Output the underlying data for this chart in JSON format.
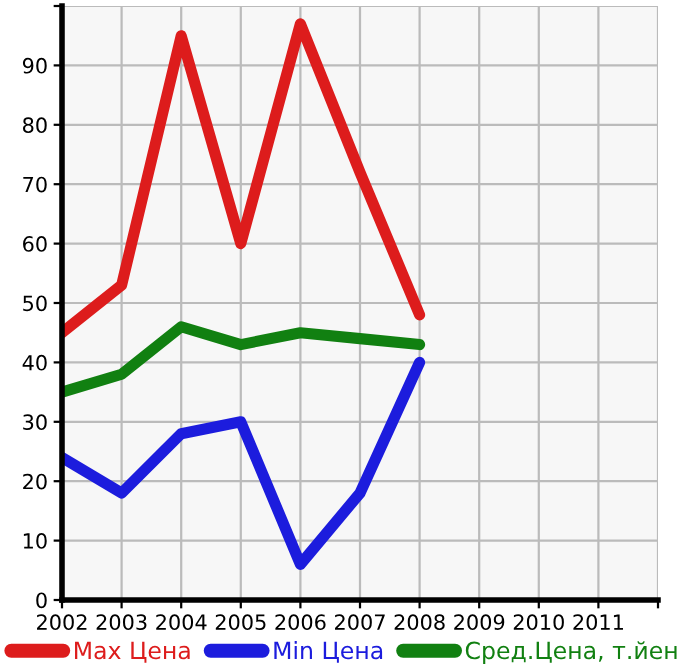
{
  "chart_data": {
    "type": "line",
    "x": [
      2002,
      2003,
      2004,
      2005,
      2006,
      2007,
      2008
    ],
    "series": [
      {
        "name": "Max Цена",
        "color": "#dd1c1c",
        "values": [
          45,
          53,
          95,
          60,
          97,
          72,
          48
        ]
      },
      {
        "name": "Min Цена",
        "color": "#1c1cdd",
        "values": [
          24,
          18,
          28,
          30,
          6,
          18,
          40
        ]
      },
      {
        "name": "Сред.Цена, т.йен",
        "color": "#118011",
        "values": [
          35,
          38,
          46,
          43,
          45,
          44,
          43
        ]
      }
    ],
    "xlim": [
      2002,
      2012
    ],
    "xticks": [
      2002,
      2003,
      2004,
      2005,
      2006,
      2007,
      2008,
      2009,
      2010,
      2011,
      {
        "value": 2012,
        "label": null
      }
    ],
    "ylim": [
      0,
      100
    ],
    "yticks": [
      0,
      10,
      20,
      30,
      40,
      50,
      60,
      70,
      80,
      90,
      {
        "value": 100,
        "label": null
      }
    ],
    "grid": true,
    "legend": "bottom",
    "marker": "none",
    "line_style": "solid"
  }
}
